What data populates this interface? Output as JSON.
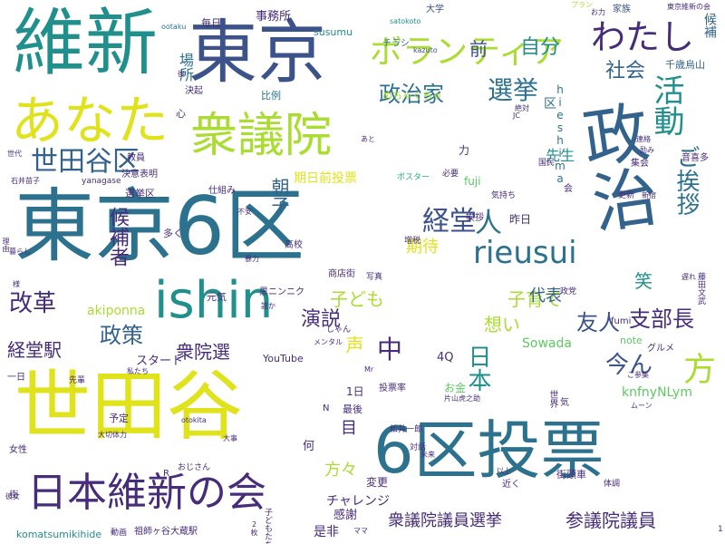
{
  "palette": {
    "purple": "#472c7a",
    "indigo": "#3b528b",
    "blue": "#33638d",
    "steel": "#2c728e",
    "teal": "#21908d",
    "green": "#27ad81",
    "lime": "#5dc963",
    "yellowgreen": "#aadc32",
    "yellow": "#e0e31b"
  },
  "words": [
    "維新",
    "東京",
    "ボランティア",
    "わたし",
    "あなた",
    "衆議院",
    "活動",
    "世田谷区",
    "政治家",
    "選挙",
    "前",
    "自分",
    "社会",
    "東京6区",
    "ishin",
    "政治",
    "rieusui",
    "経堂",
    "人",
    "ご挨拶",
    "朝子",
    "候補者",
    "改革",
    "政策",
    "演説",
    "中",
    "支部長",
    "世田谷",
    "6区投票",
    "日本維新の会",
    "衆議院議員選挙",
    "参議院議員",
    "日本",
    "方",
    "今ん",
    "声",
    "目",
    "方々",
    "子ども",
    "想い",
    "子育て",
    "友人",
    "経堂駅",
    "衆院選",
    "akiponna",
    "Sowada",
    "knfnyNLym",
    "fuji",
    "hieshima",
    "期日前投票",
    "期待",
    "代表",
    "笑",
    "先生",
    "千歳烏山",
    "毎日",
    "事務所",
    "場所",
    "大学",
    "家族",
    "susumu",
    "satokoto",
    "kazuto",
    "ootaku",
    "チラシ",
    "候補",
    "東京維新の会",
    "プラン",
    "比例",
    "決起",
    "区",
    "めちゃくちゃ",
    "JC",
    "絶対",
    "ポスター",
    "集会",
    "音喜多",
    "一日",
    "YouTube",
    "4Q",
    "お金",
    "スタート",
    "元気",
    "多く",
    "高校",
    "商店街",
    "写真",
    "1日",
    "最後",
    "何",
    "チャレンジ",
    "感謝",
    "是非",
    "ママ",
    "komatsumikihide",
    "動画",
    "祖師ヶ谷大蔵駅",
    "2枚",
    "子どもたち",
    "変更",
    "予定",
    "女性",
    "大切体力",
    "otokita",
    "選挙区",
    "仕組み",
    "教員",
    "決意表明",
    "世代",
    "石井苗子",
    "yanagase",
    "昨日",
    "挨拶",
    "気持ち",
    "国民",
    "更新",
    "必要",
    "増税",
    "街頭車",
    "以上",
    "近く",
    "体調",
    "note",
    "fumi",
    "グルメ",
    "ご参集",
    "片山虎之助",
    "松井一郎",
    "投票率",
    "世界",
    "対話",
    "未来",
    "大事",
    "おじさん",
    "街",
    "R",
    "彼女",
    "先輩",
    "様",
    "理由",
    "暮らし",
    "N",
    "黒ニンニク",
    "誰か",
    "メンタル",
    "私たち",
    "暴力",
    "不安",
    "連絡",
    "励み",
    "新宿",
    "遅れ",
    "藤田文武",
    "政党",
    "しゃん",
    "力",
    "気",
    "会",
    "あと",
    "心",
    "後",
    "お力",
    "ムーン",
    "1",
    "Mr"
  ]
}
